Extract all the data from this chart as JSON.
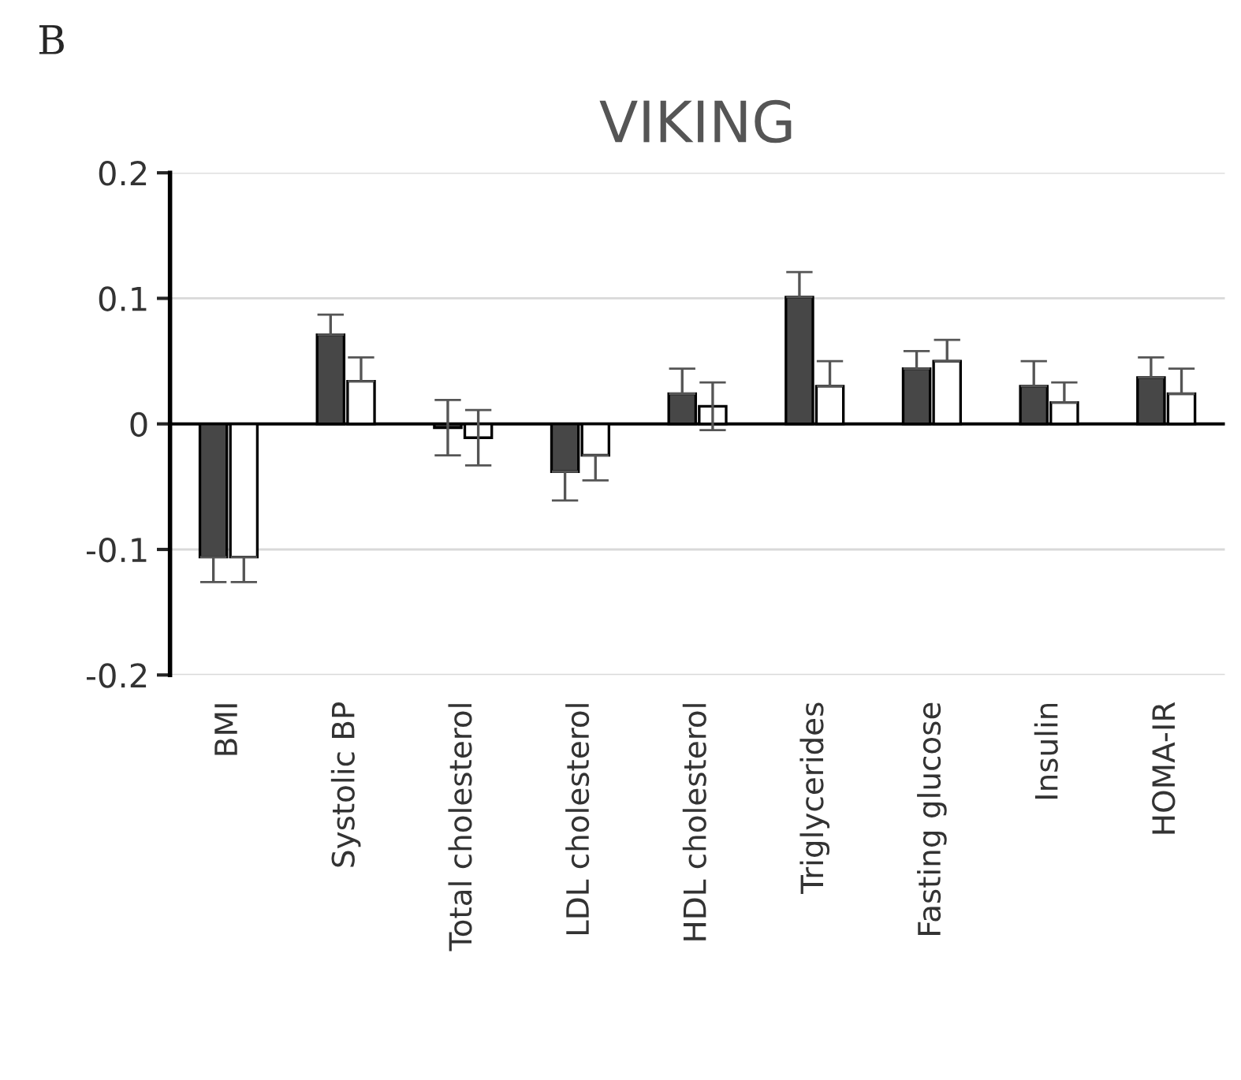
{
  "chart_data": {
    "type": "bar",
    "title": "VIKING",
    "annotations": [
      "B"
    ],
    "categories": [
      "BMI",
      "Systolic BP",
      "Total cholesterol",
      "LDL cholesterol",
      "HDL cholesterol",
      "Triglycerides",
      "Fasting glucose",
      "Insulin",
      "HOMA-IR"
    ],
    "series": [
      {
        "color": "#474747",
        "values": [
          -0.106,
          0.071,
          -0.003,
          -0.038,
          0.024,
          0.101,
          0.044,
          0.03,
          0.037
        ],
        "errors": [
          0.02,
          0.016,
          0.022,
          0.023,
          0.02,
          0.02,
          0.014,
          0.02,
          0.016
        ]
      },
      {
        "color": "#ffffff",
        "values": [
          -0.106,
          0.034,
          -0.011,
          -0.025,
          0.014,
          0.03,
          0.05,
          0.017,
          0.024
        ],
        "errors": [
          0.02,
          0.019,
          0.022,
          0.02,
          0.019,
          0.02,
          0.017,
          0.016,
          0.02
        ]
      }
    ],
    "ylim": [
      -0.2,
      0.2
    ],
    "yticks": [
      -0.2,
      -0.1,
      0,
      0.1,
      0.2
    ],
    "grid": "y"
  }
}
